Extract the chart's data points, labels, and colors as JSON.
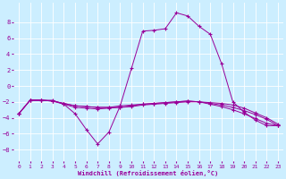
{
  "title": "",
  "xlabel": "Windchill (Refroidissement éolien,°C)",
  "ylabel": "",
  "background_color": "#cceeff",
  "grid_color": "#ffffff",
  "line_color": "#990099",
  "xlim": [
    -0.5,
    23.5
  ],
  "ylim": [
    -9.5,
    10.5
  ],
  "yticks": [
    -8,
    -6,
    -4,
    -2,
    0,
    2,
    4,
    6,
    8
  ],
  "xticks": [
    0,
    1,
    2,
    3,
    4,
    5,
    6,
    7,
    8,
    9,
    10,
    11,
    12,
    13,
    14,
    15,
    16,
    17,
    18,
    19,
    20,
    21,
    22,
    23
  ],
  "series": [
    {
      "x": [
        0,
        1,
        2,
        3,
        4,
        5,
        6,
        7,
        8,
        9,
        10,
        11,
        12,
        13,
        14,
        15,
        16,
        17,
        18,
        19,
        20,
        21,
        22,
        23
      ],
      "y": [
        -3.5,
        -1.8,
        -1.8,
        -1.8,
        -2.3,
        -3.5,
        -5.5,
        -7.3,
        -5.8,
        -2.5,
        2.2,
        6.9,
        7.0,
        7.2,
        9.2,
        8.8,
        7.5,
        6.5,
        2.8,
        -2.0,
        -3.3,
        -4.3,
        -5.0,
        -5.0
      ]
    },
    {
      "x": [
        0,
        1,
        2,
        3,
        4,
        5,
        6,
        7,
        8,
        9,
        10,
        11,
        12,
        13,
        14,
        15,
        16,
        17,
        18,
        19,
        20,
        21,
        22,
        23
      ],
      "y": [
        -3.5,
        -1.8,
        -1.8,
        -1.9,
        -2.2,
        -2.5,
        -2.6,
        -2.7,
        -2.7,
        -2.7,
        -2.6,
        -2.4,
        -2.3,
        -2.2,
        -2.1,
        -2.0,
        -2.0,
        -2.1,
        -2.2,
        -2.4,
        -2.8,
        -3.4,
        -4.0,
        -4.8
      ]
    },
    {
      "x": [
        0,
        1,
        2,
        3,
        4,
        5,
        6,
        7,
        8,
        9,
        10,
        11,
        12,
        13,
        14,
        15,
        16,
        17,
        18,
        19,
        20,
        21,
        22,
        23
      ],
      "y": [
        -3.5,
        -1.8,
        -1.8,
        -1.9,
        -2.2,
        -2.5,
        -2.6,
        -2.7,
        -2.7,
        -2.5,
        -2.4,
        -2.3,
        -2.2,
        -2.1,
        -2.0,
        -1.9,
        -2.0,
        -2.2,
        -2.4,
        -2.7,
        -3.1,
        -3.6,
        -4.2,
        -5.0
      ]
    },
    {
      "x": [
        0,
        1,
        2,
        3,
        4,
        5,
        6,
        7,
        8,
        9,
        10,
        11,
        12,
        13,
        14,
        15,
        16,
        17,
        18,
        19,
        20,
        21,
        22,
        23
      ],
      "y": [
        -3.5,
        -1.8,
        -1.8,
        -1.9,
        -2.3,
        -2.7,
        -2.8,
        -2.9,
        -2.8,
        -2.7,
        -2.5,
        -2.3,
        -2.2,
        -2.1,
        -2.0,
        -1.9,
        -2.0,
        -2.3,
        -2.6,
        -3.0,
        -3.5,
        -4.1,
        -4.7,
        -5.0
      ]
    }
  ],
  "marker": "+",
  "markersize": 3,
  "markeredgewidth": 0.8,
  "linewidth": 0.7,
  "tick_fontsize": 4.5,
  "xlabel_fontsize": 5.0
}
